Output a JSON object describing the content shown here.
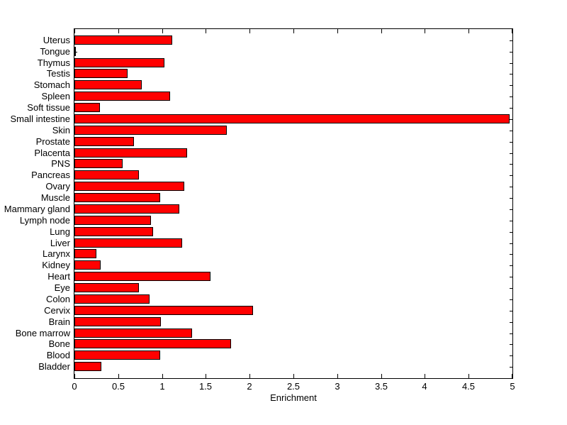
{
  "chart_data": {
    "type": "bar",
    "orientation": "horizontal",
    "title": "",
    "xlabel": "Enrichment",
    "ylabel": "",
    "xlim": [
      0,
      5
    ],
    "grid": false,
    "legend": null,
    "bar_color": "#ff0000",
    "bar_edge_color": "#000000",
    "axis_color": "#000000",
    "background_color": "#ffffff",
    "xticks": [
      "0",
      "0.5",
      "1",
      "1.5",
      "2",
      "2.5",
      "3",
      "3.5",
      "4",
      "4.5",
      "5"
    ],
    "xtick_values": [
      0,
      0.5,
      1,
      1.5,
      2,
      2.5,
      3,
      3.5,
      4,
      4.5,
      5
    ],
    "categories": [
      "Uterus",
      "Tongue",
      "Thymus",
      "Testis",
      "Stomach",
      "Spleen",
      "Soft tissue",
      "Small intestine",
      "Skin",
      "Prostate",
      "Placenta",
      "PNS",
      "Pancreas",
      "Ovary",
      "Muscle",
      "Mammary gland",
      "Lymph node",
      "Lung",
      "Liver",
      "Larynx",
      "Kidney",
      "Heart",
      "Eye",
      "Colon",
      "Cervix",
      "Brain",
      "Bone marrow",
      "Bone",
      "Blood",
      "Bladder"
    ],
    "values": [
      1.12,
      0.02,
      1.03,
      0.61,
      0.77,
      1.09,
      0.29,
      4.97,
      1.74,
      0.68,
      1.29,
      0.55,
      0.74,
      1.25,
      0.98,
      1.2,
      0.87,
      0.9,
      1.23,
      0.25,
      0.3,
      1.55,
      0.74,
      0.86,
      2.04,
      0.99,
      1.34,
      1.79,
      0.98,
      0.31
    ]
  }
}
